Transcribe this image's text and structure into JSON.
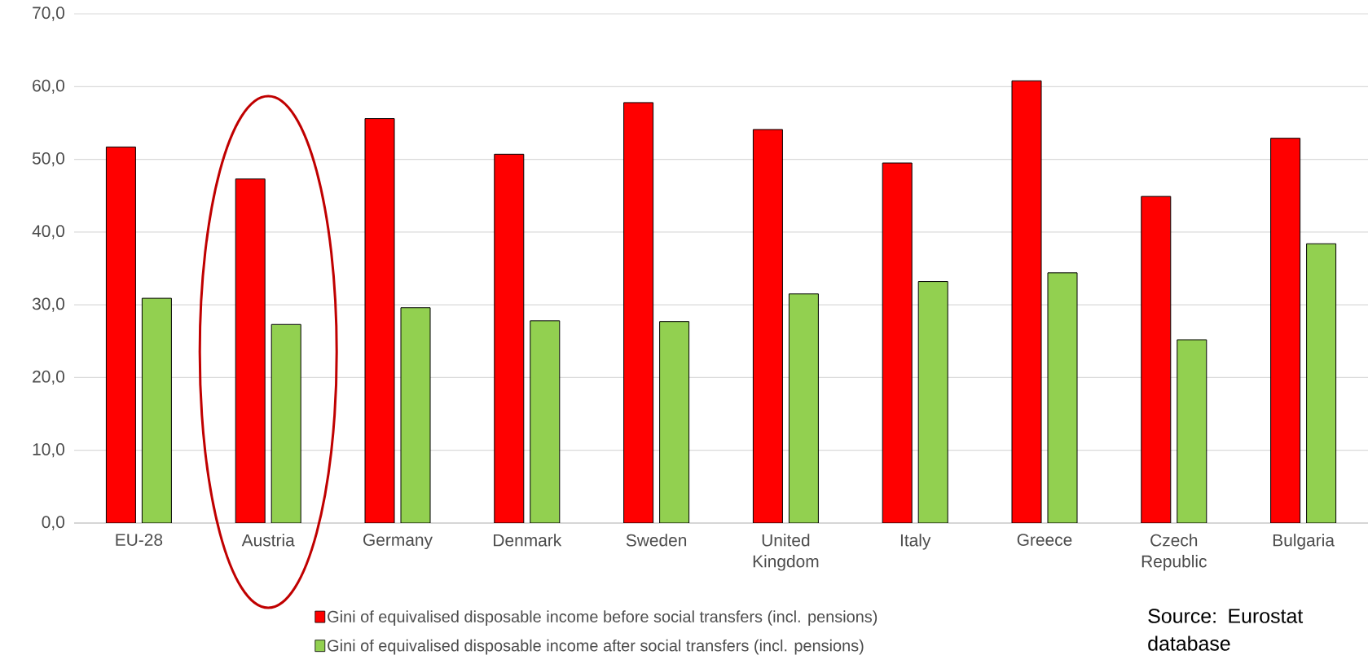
{
  "chart_data": {
    "type": "bar",
    "categories": [
      "EU-28",
      "Austria",
      "Germany",
      "Denmark",
      "Sweden",
      "United Kingdom",
      "Italy",
      "Greece",
      "Czech Republic",
      "Bulgaria"
    ],
    "series": [
      {
        "name": "Gini of equivalised disposable income before social transfers (incl. pensions)",
        "color": "#ff0000",
        "values": [
          51.7,
          47.3,
          55.6,
          50.7,
          57.8,
          54.1,
          49.5,
          60.8,
          44.9,
          52.9
        ]
      },
      {
        "name": "Gini of equivalised disposable income after social transfers (incl. pensions)",
        "color": "#92d050",
        "values": [
          30.9,
          27.3,
          29.6,
          27.8,
          27.7,
          31.5,
          33.2,
          34.4,
          25.2,
          38.4
        ]
      }
    ],
    "ylim": [
      0,
      70
    ],
    "yticks": [
      {
        "value": 0,
        "label": "0,0"
      },
      {
        "value": 10,
        "label": "10,0"
      },
      {
        "value": 20,
        "label": "20,0"
      },
      {
        "value": 30,
        "label": "30,0"
      },
      {
        "value": 40,
        "label": "40,0"
      },
      {
        "value": 50,
        "label": "50,0"
      },
      {
        "value": 60,
        "label": "60,0"
      },
      {
        "value": 70,
        "label": "70,0"
      }
    ],
    "grid": "y",
    "legend": "bottom",
    "annotations": [
      "Source: Eurostat database"
    ]
  }
}
